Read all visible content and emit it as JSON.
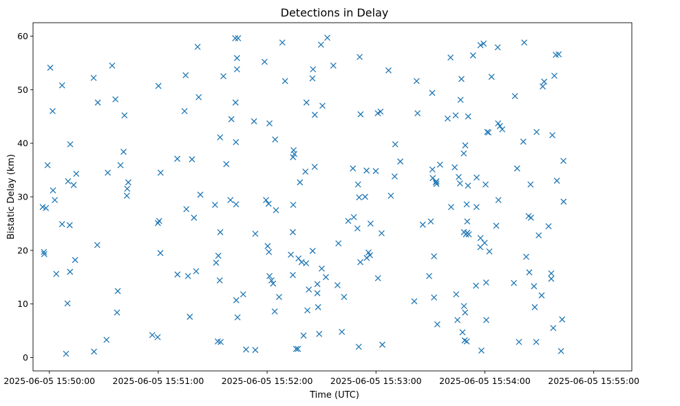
{
  "chart_data": {
    "type": "scatter",
    "title": "Detections in Delay",
    "xlabel": "Time (UTC)",
    "ylabel": "Bistatic Delay (km)",
    "x_unit": "seconds since 2025-06-05 15:50:00",
    "xlim": [
      -9,
      321
    ],
    "ylim": [
      -2.5,
      62.5
    ],
    "x_ticks": [
      {
        "value": 0,
        "label": "2025-06-05 15:50:00"
      },
      {
        "value": 60,
        "label": "2025-06-05 15:51:00"
      },
      {
        "value": 120,
        "label": "2025-06-05 15:52:00"
      },
      {
        "value": 180,
        "label": "2025-06-05 15:53:00"
      },
      {
        "value": 240,
        "label": "2025-06-05 15:54:00"
      },
      {
        "value": 300,
        "label": "2025-06-05 15:55:00"
      }
    ],
    "y_ticks": [
      {
        "value": 0,
        "label": "0"
      },
      {
        "value": 10,
        "label": "10"
      },
      {
        "value": 20,
        "label": "20"
      },
      {
        "value": 30,
        "label": "30"
      },
      {
        "value": 40,
        "label": "40"
      },
      {
        "value": 50,
        "label": "50"
      },
      {
        "value": 60,
        "label": "60"
      }
    ],
    "marker": "x",
    "color": "#1f77b4",
    "grid": false,
    "series": [
      {
        "points": [
          [
            -3.7,
            28.1
          ],
          [
            -3.0,
            19.7
          ],
          [
            -2.8,
            19.3
          ],
          [
            -1.9,
            27.9
          ],
          [
            -1.0,
            35.9
          ],
          [
            0.5,
            54.1
          ],
          [
            1.8,
            46.0
          ],
          [
            2.0,
            31.2
          ],
          [
            3.0,
            29.4
          ],
          [
            3.8,
            15.6
          ],
          [
            7.0,
            50.8
          ],
          [
            7.0,
            24.9
          ],
          [
            9.2,
            0.7
          ],
          [
            10.0,
            10.1
          ],
          [
            10.3,
            32.9
          ],
          [
            11.2,
            24.7
          ],
          [
            11.4,
            16.0
          ],
          [
            11.5,
            39.8
          ],
          [
            13.4,
            32.2
          ],
          [
            14.2,
            18.2
          ],
          [
            14.8,
            34.3
          ],
          [
            24.4,
            52.2
          ],
          [
            24.6,
            1.1
          ],
          [
            26.4,
            21.0
          ],
          [
            26.7,
            47.6
          ],
          [
            31.5,
            3.3
          ],
          [
            32.2,
            34.5
          ],
          [
            34.6,
            54.5
          ],
          [
            36.4,
            48.2
          ],
          [
            37.3,
            8.4
          ],
          [
            37.7,
            12.4
          ],
          [
            39.2,
            35.9
          ],
          [
            40.9,
            38.4
          ],
          [
            41.4,
            45.2
          ],
          [
            42.7,
            30.2
          ],
          [
            42.9,
            31.5
          ],
          [
            43.5,
            32.7
          ],
          [
            56.7,
            4.2
          ],
          [
            59.7,
            3.8
          ],
          [
            59.8,
            25.1
          ],
          [
            60.1,
            50.7
          ],
          [
            60.5,
            25.5
          ],
          [
            61.2,
            19.5
          ],
          [
            61.3,
            34.5
          ],
          [
            70.5,
            37.1
          ],
          [
            70.6,
            15.5
          ],
          [
            74.5,
            46.0
          ],
          [
            75.1,
            52.7
          ],
          [
            75.5,
            27.7
          ],
          [
            76.4,
            15.2
          ],
          [
            77.4,
            7.6
          ],
          [
            78.6,
            37.0
          ],
          [
            79.7,
            26.1
          ],
          [
            80.9,
            16.1
          ],
          [
            81.7,
            58.0
          ],
          [
            82.3,
            48.6
          ],
          [
            83.2,
            30.4
          ],
          [
            91.3,
            28.5
          ],
          [
            91.9,
            17.7
          ],
          [
            92.8,
            3.0
          ],
          [
            93.1,
            19.0
          ],
          [
            94.1,
            41.1
          ],
          [
            93.9,
            14.4
          ],
          [
            94.2,
            23.4
          ],
          [
            94.4,
            2.9
          ],
          [
            95.9,
            52.5
          ],
          [
            97.5,
            36.1
          ],
          [
            99.8,
            29.4
          ],
          [
            100.3,
            44.5
          ],
          [
            102.4,
            59.6
          ],
          [
            104.0,
            59.6
          ],
          [
            102.6,
            47.6
          ],
          [
            102.8,
            40.2
          ],
          [
            102.9,
            28.6
          ],
          [
            103.0,
            10.7
          ],
          [
            103.4,
            53.8
          ],
          [
            103.4,
            55.9
          ],
          [
            103.7,
            7.5
          ],
          [
            106.8,
            11.8
          ],
          [
            108.4,
            1.5
          ],
          [
            112.8,
            44.1
          ],
          [
            113.5,
            23.1
          ],
          [
            113.5,
            1.4
          ],
          [
            118.6,
            55.2
          ],
          [
            119.4,
            29.4
          ],
          [
            120.8,
            28.7
          ],
          [
            120.3,
            20.8
          ],
          [
            121.3,
            43.7
          ],
          [
            121.3,
            15.2
          ],
          [
            121.0,
            19.7
          ],
          [
            122.4,
            14.4
          ],
          [
            123.3,
            13.8
          ],
          [
            124.4,
            40.7
          ],
          [
            124.2,
            8.6
          ],
          [
            124.9,
            27.5
          ],
          [
            126.6,
            11.3
          ],
          [
            128.4,
            58.8
          ],
          [
            129.9,
            51.6
          ],
          [
            133.1,
            19.2
          ],
          [
            134.2,
            15.4
          ],
          [
            134.4,
            28.5
          ],
          [
            134.2,
            23.4
          ],
          [
            134.6,
            38.7
          ],
          [
            134.3,
            37.4
          ],
          [
            135.0,
            38.0
          ],
          [
            136.0,
            1.6
          ],
          [
            137.0,
            1.6
          ],
          [
            137.3,
            18.5
          ],
          [
            138.1,
            32.7
          ],
          [
            139.0,
            17.8
          ],
          [
            140.1,
            4.1
          ],
          [
            141.1,
            34.7
          ],
          [
            141.5,
            17.6
          ],
          [
            141.7,
            47.6
          ],
          [
            142.2,
            8.8
          ],
          [
            143.0,
            12.7
          ],
          [
            145.3,
            53.8
          ],
          [
            145.0,
            52.1
          ],
          [
            145.1,
            19.9
          ],
          [
            146.2,
            35.6
          ],
          [
            146.3,
            45.3
          ],
          [
            147.7,
            13.7
          ],
          [
            147.7,
            12.0
          ],
          [
            148.1,
            9.4
          ],
          [
            148.7,
            4.4
          ],
          [
            149.7,
            58.4
          ],
          [
            150.5,
            47.0
          ],
          [
            150.1,
            16.6
          ],
          [
            152.4,
            15.0
          ],
          [
            153.2,
            59.7
          ],
          [
            156.5,
            54.5
          ],
          [
            159.3,
            21.3
          ],
          [
            158.8,
            13.5
          ],
          [
            161.2,
            4.8
          ],
          [
            162.4,
            11.3
          ],
          [
            164.7,
            25.5
          ],
          [
            167.3,
            35.3
          ],
          [
            167.8,
            26.2
          ],
          [
            170.1,
            32.3
          ],
          [
            170.7,
            29.9
          ],
          [
            169.8,
            24.1
          ],
          [
            170.5,
            2.0
          ],
          [
            171.0,
            56.1
          ],
          [
            171.4,
            17.8
          ],
          [
            171.5,
            45.4
          ],
          [
            174.0,
            30.0
          ],
          [
            174.8,
            34.9
          ],
          [
            174.9,
            18.6
          ],
          [
            176.7,
            19.1
          ],
          [
            175.9,
            19.6
          ],
          [
            177.0,
            25.0
          ],
          [
            179.9,
            34.8
          ],
          [
            181.0,
            45.6
          ],
          [
            181.1,
            14.8
          ],
          [
            182.5,
            45.9
          ],
          [
            183.1,
            23.2
          ],
          [
            183.5,
            2.4
          ],
          [
            186.9,
            53.6
          ],
          [
            188.2,
            30.2
          ],
          [
            190.3,
            33.8
          ],
          [
            190.6,
            39.8
          ],
          [
            193.4,
            36.6
          ],
          [
            201.1,
            10.5
          ],
          [
            202.4,
            51.6
          ],
          [
            202.9,
            45.6
          ],
          [
            205.8,
            24.8
          ],
          [
            209.3,
            15.2
          ],
          [
            210.2,
            25.4
          ],
          [
            211.0,
            49.4
          ],
          [
            211.1,
            35.1
          ],
          [
            211.3,
            33.5
          ],
          [
            212.0,
            18.9
          ],
          [
            212.0,
            11.2
          ],
          [
            213.3,
            32.9
          ],
          [
            213.0,
            32.7
          ],
          [
            213.3,
            32.4
          ],
          [
            213.8,
            6.2
          ],
          [
            215.3,
            36.0
          ],
          [
            219.5,
            44.6
          ],
          [
            221.1,
            56.0
          ],
          [
            221.4,
            28.1
          ],
          [
            223.4,
            35.5
          ],
          [
            223.9,
            45.2
          ],
          [
            224.2,
            11.8
          ],
          [
            224.9,
            7.0
          ],
          [
            225.6,
            33.7
          ],
          [
            226.6,
            48.1
          ],
          [
            226.3,
            32.5
          ],
          [
            227.1,
            52.0
          ],
          [
            227.7,
            4.7
          ],
          [
            228.4,
            38.1
          ],
          [
            228.5,
            23.4
          ],
          [
            228.9,
            3.2
          ],
          [
            228.5,
            9.6
          ],
          [
            229.1,
            8.4
          ],
          [
            229.2,
            39.6
          ],
          [
            229.6,
            23.0
          ],
          [
            230.0,
            28.6
          ],
          [
            230.3,
            25.4
          ],
          [
            230.3,
            23.3
          ],
          [
            230.7,
            32.1
          ],
          [
            230.8,
            45.0
          ],
          [
            230.0,
            3.0
          ],
          [
            231.1,
            23.0
          ],
          [
            233.5,
            56.4
          ],
          [
            235.1,
            13.4
          ],
          [
            235.4,
            28.1
          ],
          [
            235.5,
            33.6
          ],
          [
            237.6,
            58.3
          ],
          [
            237.6,
            22.3
          ],
          [
            237.5,
            20.6
          ],
          [
            238.1,
            1.3
          ],
          [
            239.3,
            58.6
          ],
          [
            239.9,
            21.4
          ],
          [
            240.4,
            32.3
          ],
          [
            240.7,
            14.0
          ],
          [
            240.8,
            7.0
          ],
          [
            241.3,
            42.1
          ],
          [
            242.0,
            42.0
          ],
          [
            242.5,
            19.8
          ],
          [
            243.7,
            52.4
          ],
          [
            246.3,
            24.6
          ],
          [
            247.1,
            57.9
          ],
          [
            247.3,
            43.7
          ],
          [
            247.5,
            29.4
          ],
          [
            248.3,
            43.2
          ],
          [
            249.6,
            42.6
          ],
          [
            256.0,
            13.9
          ],
          [
            256.6,
            48.8
          ],
          [
            257.8,
            35.3
          ],
          [
            258.8,
            2.9
          ],
          [
            261.2,
            40.3
          ],
          [
            261.7,
            58.8
          ],
          [
            262.8,
            18.8
          ],
          [
            264.1,
            26.4
          ],
          [
            264.5,
            15.9
          ],
          [
            265.4,
            26.1
          ],
          [
            265.2,
            32.3
          ],
          [
            267.1,
            13.3
          ],
          [
            267.5,
            9.4
          ],
          [
            268.3,
            2.9
          ],
          [
            268.5,
            42.1
          ],
          [
            269.7,
            22.8
          ],
          [
            271.3,
            11.6
          ],
          [
            271.9,
            50.6
          ],
          [
            272.7,
            51.5
          ],
          [
            275.1,
            24.5
          ],
          [
            276.6,
            14.7
          ],
          [
            276.6,
            15.7
          ],
          [
            277.2,
            41.5
          ],
          [
            277.7,
            5.5
          ],
          [
            278.3,
            52.6
          ],
          [
            279.1,
            56.5
          ],
          [
            280.7,
            56.6
          ],
          [
            279.7,
            33.0
          ],
          [
            282.0,
            1.2
          ],
          [
            282.6,
            7.1
          ],
          [
            283.3,
            36.7
          ],
          [
            283.4,
            29.1
          ]
        ]
      }
    ]
  }
}
